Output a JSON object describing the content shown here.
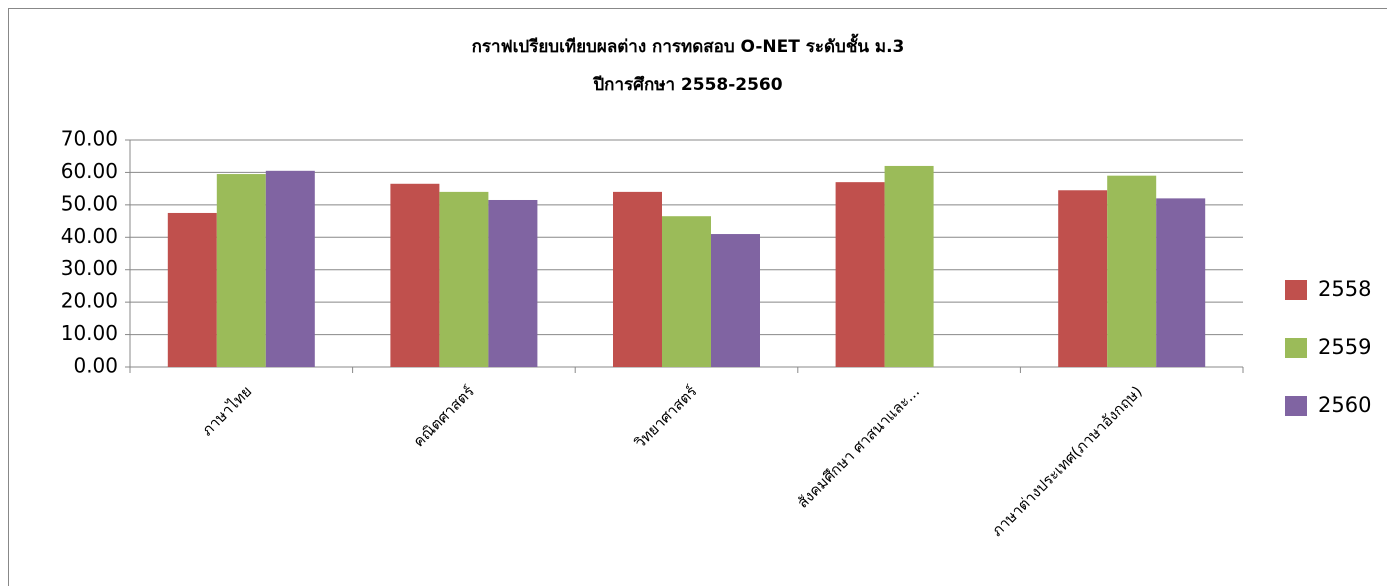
{
  "chart_data": {
    "type": "bar",
    "title": "กราฟเปรียบเทียบผลต่าง การทดสอบ O-NET ระดับชั้น ม.3",
    "subtitle": "ปีการศึกษา 2558-2560",
    "categories": [
      "ภาษาไทย",
      "คณิตศาสตร์",
      "วิทยาศาสตร์",
      "สังคมศึกษา ศาสนาและ...",
      "ภาษาต่างประเทศ(ภาษาอังกฤษ)"
    ],
    "series": [
      {
        "name": "2558",
        "color": "#c0504d",
        "values": [
          47.5,
          56.5,
          54,
          57,
          54.5
        ]
      },
      {
        "name": "2559",
        "color": "#9bbb59",
        "values": [
          59.5,
          54,
          46.5,
          62,
          59
        ]
      },
      {
        "name": "2560",
        "color": "#8064a2",
        "values": [
          60.5,
          51.5,
          41,
          null,
          52
        ]
      }
    ],
    "ylim": [
      0,
      70
    ],
    "yticks": [
      {
        "value": 0,
        "label": "0.00"
      },
      {
        "value": 10,
        "label": "10.00"
      },
      {
        "value": 20,
        "label": "20.00"
      },
      {
        "value": 30,
        "label": "30.00"
      },
      {
        "value": 40,
        "label": "40.00"
      },
      {
        "value": 50,
        "label": "50.00"
      },
      {
        "value": 60,
        "label": "60.00"
      },
      {
        "value": 70,
        "label": "70.00"
      }
    ],
    "grid": true,
    "legend": "right"
  }
}
